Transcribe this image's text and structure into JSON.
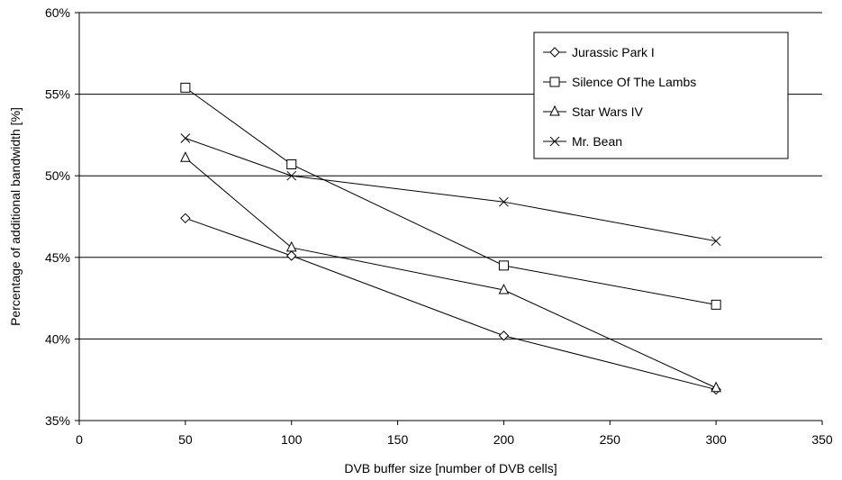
{
  "chart_data": {
    "type": "line",
    "title": "",
    "xlabel": "DVB buffer size [number of DVB cells]",
    "ylabel": "Percentage of additional bandwidth [%]",
    "xlim": [
      0,
      350
    ],
    "ylim": [
      35,
      60
    ],
    "x_ticks": [
      "0",
      "50",
      "100",
      "150",
      "200",
      "250",
      "300",
      "350"
    ],
    "y_ticks": [
      "35%",
      "40%",
      "45%",
      "50%",
      "55%",
      "60%"
    ],
    "grid": "horizontal",
    "legend_position": "top-right",
    "series": [
      {
        "name": "Jurassic Park I",
        "marker": "diamond",
        "x": [
          50,
          100,
          200,
          300
        ],
        "values": [
          47.4,
          45.1,
          40.2,
          36.9
        ]
      },
      {
        "name": "Silence Of The Lambs",
        "marker": "square",
        "x": [
          50,
          100,
          200,
          300
        ],
        "values": [
          55.4,
          50.7,
          44.5,
          42.1
        ]
      },
      {
        "name": "Star Wars IV",
        "marker": "triangle",
        "x": [
          50,
          100,
          200,
          300
        ],
        "values": [
          51.1,
          45.6,
          43.0,
          37.0
        ]
      },
      {
        "name": "Mr. Bean",
        "marker": "x",
        "x": [
          50,
          100,
          200,
          300
        ],
        "values": [
          52.3,
          50.0,
          48.4,
          46.0
        ]
      }
    ]
  }
}
